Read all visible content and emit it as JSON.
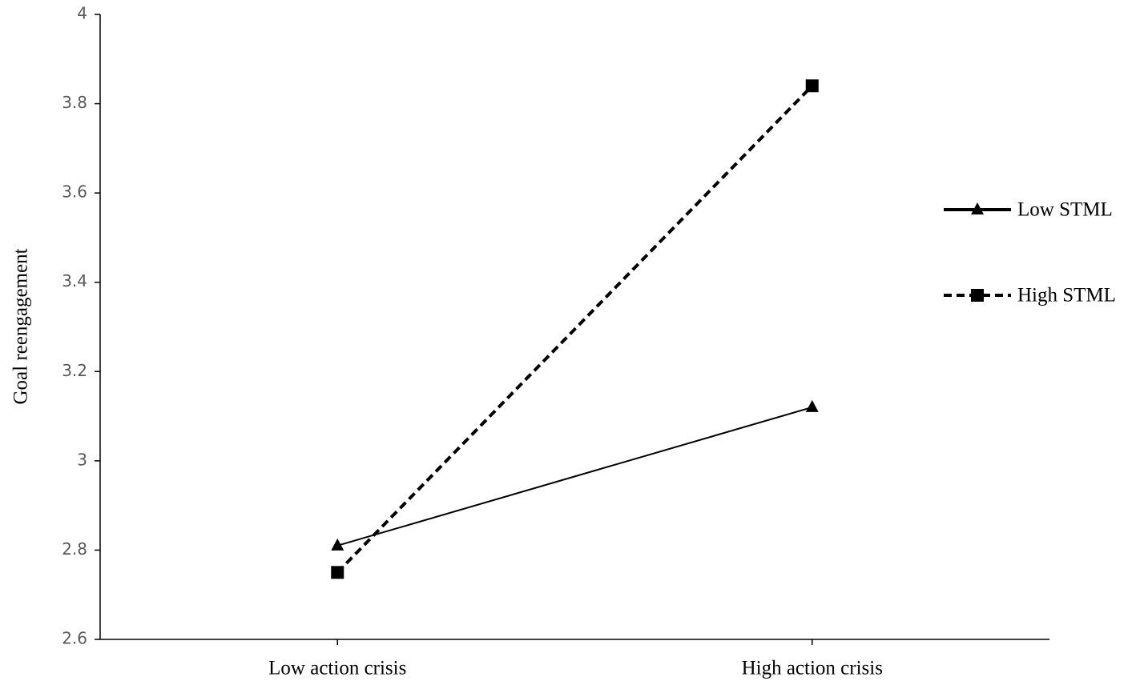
{
  "chart_data": {
    "type": "line",
    "y_label": "Goal reengagement",
    "categories": [
      "Low action crisis",
      "High action crisis"
    ],
    "series": [
      {
        "name": "Low STML",
        "color": "#000000",
        "values": [
          2.81,
          3.12
        ],
        "marker": "triangle",
        "dash": "solid"
      },
      {
        "name": "High STML",
        "color": "#000000",
        "values": [
          2.75,
          3.84
        ],
        "marker": "square",
        "dash": "dashed"
      }
    ],
    "ylim": [
      2.6,
      4
    ],
    "yticks": [
      2.6,
      2.8,
      3,
      3.2,
      3.4,
      3.6,
      3.8,
      4
    ],
    "grid": false,
    "legend": "right"
  }
}
